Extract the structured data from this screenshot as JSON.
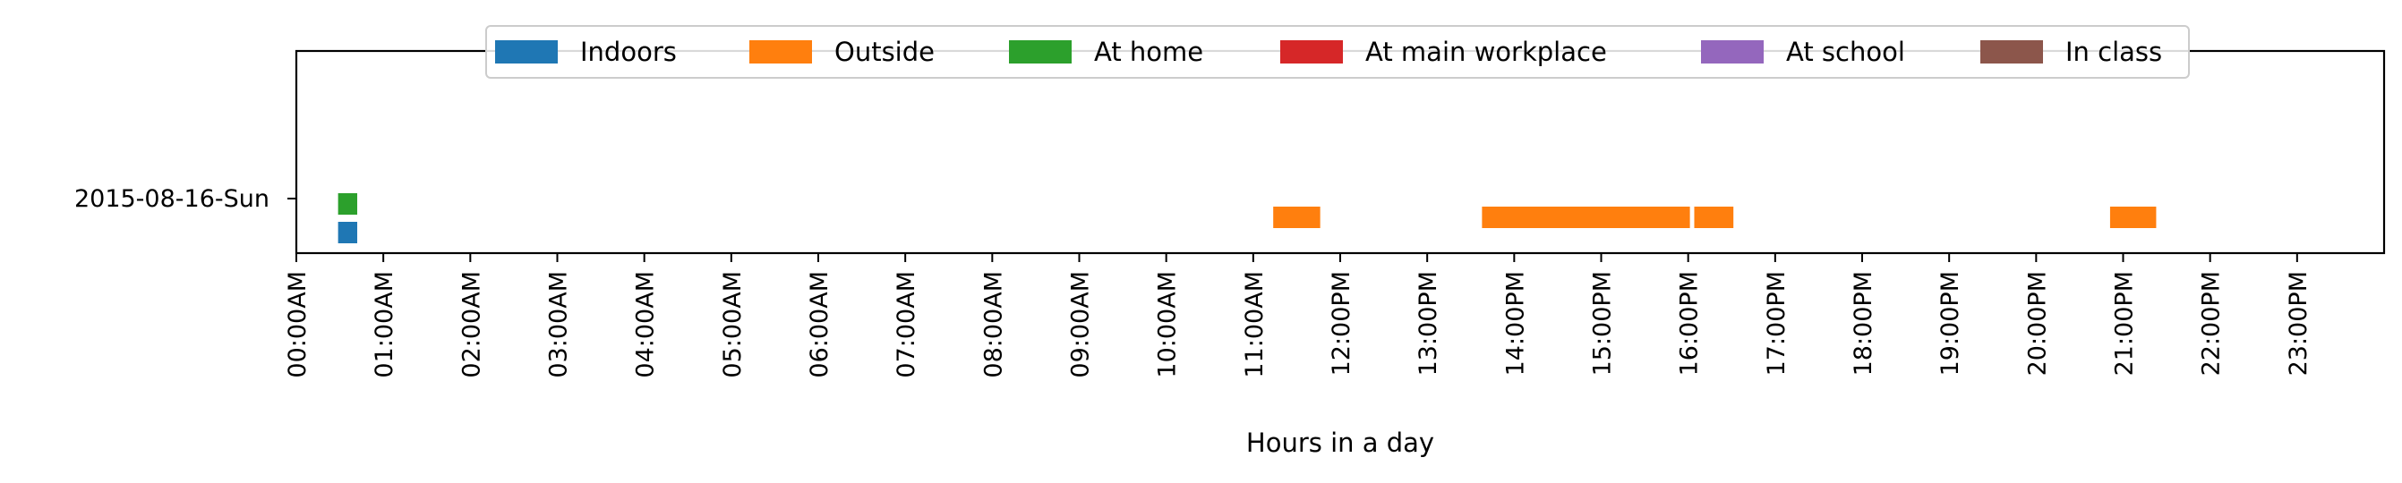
{
  "chart_data": {
    "type": "timeline",
    "xlabel": "Hours in a day",
    "xlim": [
      0,
      24
    ],
    "x_ticks": [
      {
        "value": 0,
        "label": "00:00AM"
      },
      {
        "value": 1,
        "label": "01:00AM"
      },
      {
        "value": 2,
        "label": "02:00AM"
      },
      {
        "value": 3,
        "label": "03:00AM"
      },
      {
        "value": 4,
        "label": "04:00AM"
      },
      {
        "value": 5,
        "label": "05:00AM"
      },
      {
        "value": 6,
        "label": "06:00AM"
      },
      {
        "value": 7,
        "label": "07:00AM"
      },
      {
        "value": 8,
        "label": "08:00AM"
      },
      {
        "value": 9,
        "label": "09:00AM"
      },
      {
        "value": 10,
        "label": "10:00AM"
      },
      {
        "value": 11,
        "label": "11:00AM"
      },
      {
        "value": 12,
        "label": "12:00PM"
      },
      {
        "value": 13,
        "label": "13:00PM"
      },
      {
        "value": 14,
        "label": "14:00PM"
      },
      {
        "value": 15,
        "label": "15:00PM"
      },
      {
        "value": 16,
        "label": "16:00PM"
      },
      {
        "value": 17,
        "label": "17:00PM"
      },
      {
        "value": 18,
        "label": "18:00PM"
      },
      {
        "value": 19,
        "label": "19:00PM"
      },
      {
        "value": 20,
        "label": "20:00PM"
      },
      {
        "value": 21,
        "label": "21:00PM"
      },
      {
        "value": 22,
        "label": "22:00PM"
      },
      {
        "value": 23,
        "label": "23:00PM"
      }
    ],
    "days": [
      {
        "label": "2015-08-16-Sun"
      }
    ],
    "legend_position": "top-center",
    "grid": false,
    "series": [
      {
        "name": "Indoors",
        "color": "#1f77b4",
        "intervals": [
          {
            "day": 0,
            "start": 0.48,
            "end": 0.7
          }
        ]
      },
      {
        "name": "Outside",
        "color": "#ff7f0e",
        "intervals": [
          {
            "day": 0,
            "start": 11.23,
            "end": 11.77
          },
          {
            "day": 0,
            "start": 13.63,
            "end": 16.02
          },
          {
            "day": 0,
            "start": 16.07,
            "end": 16.52
          },
          {
            "day": 0,
            "start": 20.85,
            "end": 21.38
          }
        ]
      },
      {
        "name": "At home",
        "color": "#2ca02c",
        "intervals": [
          {
            "day": 0,
            "start": 0.48,
            "end": 0.7
          }
        ]
      },
      {
        "name": "At main workplace",
        "color": "#d62728",
        "intervals": []
      },
      {
        "name": "At school",
        "color": "#9467bd",
        "intervals": []
      },
      {
        "name": "In class",
        "color": "#8c564b",
        "intervals": []
      }
    ]
  }
}
